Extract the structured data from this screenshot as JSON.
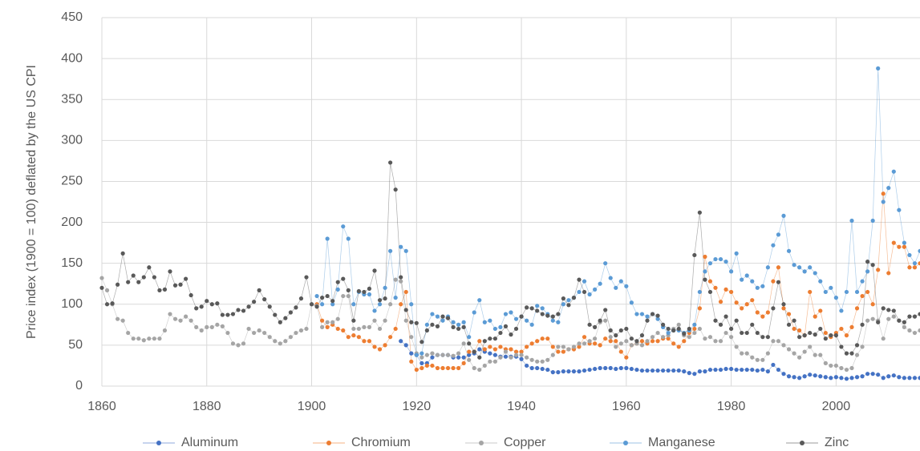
{
  "chart_data": {
    "type": "scatter_line",
    "y_label": "Price index (1900 = 100) deflated by the US CPI",
    "x": [
      1860,
      1861,
      1862,
      1863,
      1864,
      1865,
      1866,
      1867,
      1868,
      1869,
      1870,
      1871,
      1872,
      1873,
      1874,
      1875,
      1876,
      1877,
      1878,
      1879,
      1880,
      1881,
      1882,
      1883,
      1884,
      1885,
      1886,
      1887,
      1888,
      1889,
      1890,
      1891,
      1892,
      1893,
      1894,
      1895,
      1896,
      1897,
      1898,
      1899,
      1900,
      1901,
      1902,
      1903,
      1904,
      1905,
      1906,
      1907,
      1908,
      1909,
      1910,
      1911,
      1912,
      1913,
      1914,
      1915,
      1916,
      1917,
      1918,
      1919,
      1920,
      1921,
      1922,
      1923,
      1924,
      1925,
      1926,
      1927,
      1928,
      1929,
      1930,
      1931,
      1932,
      1933,
      1934,
      1935,
      1936,
      1937,
      1938,
      1939,
      1940,
      1941,
      1942,
      1943,
      1944,
      1945,
      1946,
      1947,
      1948,
      1949,
      1950,
      1951,
      1952,
      1953,
      1954,
      1955,
      1956,
      1957,
      1958,
      1959,
      1960,
      1961,
      1962,
      1963,
      1964,
      1965,
      1966,
      1967,
      1968,
      1969,
      1970,
      1971,
      1972,
      1973,
      1974,
      1975,
      1976,
      1977,
      1978,
      1979,
      1980,
      1981,
      1982,
      1983,
      1984,
      1985,
      1986,
      1987,
      1988,
      1989,
      1990,
      1991,
      1992,
      1993,
      1994,
      1995,
      1996,
      1997,
      1998,
      1999,
      2000,
      2001,
      2002,
      2003,
      2004,
      2005,
      2006,
      2007,
      2008,
      2009,
      2010,
      2011,
      2012,
      2013,
      2014,
      2015,
      2016
    ],
    "series": [
      {
        "name": "Aluminum",
        "color": "#4472c4",
        "values": [
          null,
          null,
          null,
          null,
          null,
          null,
          null,
          null,
          null,
          null,
          null,
          null,
          null,
          null,
          null,
          null,
          null,
          null,
          null,
          null,
          null,
          null,
          null,
          null,
          null,
          null,
          null,
          null,
          null,
          null,
          null,
          null,
          null,
          null,
          null,
          null,
          null,
          null,
          null,
          null,
          null,
          null,
          null,
          null,
          null,
          null,
          null,
          null,
          null,
          null,
          null,
          null,
          null,
          null,
          null,
          null,
          null,
          55,
          50,
          40,
          38,
          28,
          28,
          35,
          38,
          38,
          38,
          35,
          35,
          35,
          38,
          40,
          45,
          42,
          40,
          38,
          36,
          36,
          36,
          36,
          33,
          25,
          22,
          22,
          21,
          20,
          17,
          17,
          18,
          18,
          18,
          18,
          19,
          20,
          21,
          22,
          22,
          22,
          21,
          22,
          22,
          21,
          20,
          19,
          19,
          19,
          19,
          19,
          19,
          19,
          19,
          18,
          16,
          15,
          18,
          18,
          20,
          20,
          20,
          21,
          21,
          20,
          20,
          20,
          20,
          19,
          20,
          18,
          26,
          20,
          15,
          12,
          11,
          10,
          12,
          14,
          13,
          12,
          11,
          10,
          11,
          10,
          9,
          10,
          11,
          12,
          15,
          15,
          14,
          10,
          12,
          13,
          11,
          10,
          10,
          10,
          10
        ]
      },
      {
        "name": "Chromium",
        "color": "#ed7d31",
        "values": [
          null,
          null,
          null,
          null,
          null,
          null,
          null,
          null,
          null,
          null,
          null,
          null,
          null,
          null,
          null,
          null,
          null,
          null,
          null,
          null,
          null,
          null,
          null,
          null,
          null,
          null,
          null,
          null,
          null,
          null,
          null,
          null,
          null,
          null,
          null,
          null,
          null,
          null,
          null,
          null,
          null,
          100,
          80,
          72,
          75,
          70,
          68,
          60,
          62,
          60,
          55,
          55,
          48,
          45,
          50,
          60,
          70,
          100,
          115,
          30,
          20,
          22,
          25,
          25,
          22,
          22,
          22,
          22,
          22,
          28,
          42,
          42,
          55,
          45,
          48,
          45,
          48,
          45,
          45,
          42,
          42,
          48,
          52,
          55,
          58,
          58,
          48,
          42,
          42,
          45,
          45,
          48,
          60,
          52,
          52,
          50,
          58,
          55,
          55,
          42,
          35,
          50,
          52,
          55,
          52,
          55,
          55,
          58,
          58,
          52,
          48,
          55,
          65,
          70,
          95,
          158,
          128,
          120,
          103,
          118,
          115,
          102,
          95,
          100,
          105,
          90,
          85,
          90,
          128,
          145,
          95,
          88,
          70,
          68,
          62,
          115,
          85,
          92,
          65,
          60,
          65,
          70,
          62,
          72,
          95,
          110,
          115,
          100,
          142,
          235,
          138,
          175,
          170,
          170,
          145,
          145,
          150
        ]
      },
      {
        "name": "Copper",
        "color": "#a5a5a5",
        "values": [
          132,
          117,
          100,
          82,
          80,
          65,
          58,
          58,
          56,
          58,
          58,
          58,
          68,
          88,
          82,
          80,
          85,
          80,
          72,
          68,
          72,
          72,
          75,
          73,
          65,
          52,
          50,
          52,
          70,
          65,
          68,
          65,
          60,
          55,
          52,
          55,
          60,
          65,
          68,
          70,
          100,
          98,
          72,
          78,
          78,
          82,
          110,
          110,
          70,
          70,
          72,
          72,
          80,
          70,
          80,
          100,
          130,
          128,
          80,
          60,
          40,
          35,
          38,
          40,
          38,
          38,
          38,
          37,
          40,
          52,
          32,
          22,
          20,
          25,
          30,
          30,
          35,
          42,
          35,
          38,
          38,
          35,
          32,
          30,
          30,
          32,
          38,
          48,
          48,
          45,
          48,
          52,
          52,
          55,
          58,
          78,
          80,
          60,
          48,
          52,
          55,
          50,
          52,
          50,
          55,
          60,
          65,
          60,
          62,
          70,
          75,
          62,
          60,
          65,
          70,
          58,
          60,
          55,
          55,
          65,
          60,
          48,
          40,
          40,
          35,
          32,
          32,
          40,
          55,
          55,
          50,
          45,
          40,
          35,
          42,
          48,
          38,
          38,
          28,
          25,
          25,
          22,
          20,
          22,
          38,
          48,
          80,
          82,
          80,
          58,
          82,
          85,
          80,
          72,
          68,
          65,
          68
        ]
      },
      {
        "name": "Manganese",
        "color": "#5b9bd5",
        "values": [
          null,
          null,
          null,
          null,
          null,
          null,
          null,
          null,
          null,
          null,
          null,
          null,
          null,
          null,
          null,
          null,
          null,
          null,
          null,
          null,
          null,
          null,
          null,
          null,
          null,
          null,
          null,
          null,
          null,
          null,
          null,
          null,
          null,
          null,
          null,
          null,
          null,
          null,
          null,
          null,
          null,
          110,
          100,
          180,
          100,
          118,
          195,
          180,
          100,
          115,
          112,
          112,
          92,
          100,
          120,
          165,
          108,
          170,
          165,
          100,
          38,
          40,
          75,
          88,
          85,
          80,
          85,
          78,
          75,
          78,
          60,
          90,
          105,
          78,
          80,
          70,
          72,
          88,
          90,
          82,
          85,
          80,
          75,
          98,
          95,
          88,
          80,
          78,
          100,
          105,
          108,
          115,
          128,
          112,
          118,
          125,
          150,
          132,
          120,
          128,
          122,
          102,
          88,
          88,
          85,
          88,
          82,
          72,
          65,
          68,
          68,
          65,
          68,
          75,
          115,
          140,
          150,
          155,
          155,
          152,
          140,
          162,
          130,
          135,
          128,
          120,
          122,
          145,
          172,
          185,
          208,
          165,
          148,
          145,
          140,
          145,
          138,
          128,
          115,
          120,
          108,
          92,
          115,
          202,
          115,
          128,
          140,
          202,
          388,
          225,
          242,
          262,
          215,
          175,
          160,
          150,
          165
        ]
      },
      {
        "name": "Zinc",
        "color": "#595959",
        "values": [
          120,
          100,
          101,
          124,
          162,
          127,
          135,
          127,
          133,
          145,
          133,
          117,
          118,
          140,
          123,
          124,
          131,
          111,
          95,
          97,
          104,
          100,
          101,
          87,
          87,
          88,
          93,
          92,
          97,
          103,
          117,
          106,
          97,
          87,
          78,
          83,
          90,
          96,
          107,
          133,
          100,
          97,
          108,
          110,
          104,
          127,
          131,
          117,
          80,
          116,
          115,
          119,
          141,
          105,
          107,
          273,
          240,
          133,
          93,
          78,
          77,
          54,
          68,
          75,
          73,
          85,
          83,
          72,
          70,
          72,
          52,
          42,
          35,
          55,
          58,
          58,
          65,
          73,
          63,
          70,
          85,
          96,
          95,
          92,
          88,
          86,
          85,
          88,
          107,
          99,
          108,
          130,
          115,
          75,
          72,
          80,
          93,
          68,
          62,
          68,
          70,
          58,
          55,
          62,
          80,
          88,
          86,
          75,
          70,
          68,
          70,
          64,
          70,
          160,
          212,
          130,
          115,
          80,
          75,
          85,
          70,
          80,
          65,
          65,
          75,
          65,
          60,
          60,
          95,
          127,
          100,
          75,
          80,
          60,
          62,
          65,
          63,
          70,
          58,
          62,
          62,
          48,
          40,
          40,
          50,
          75,
          152,
          148,
          78,
          95,
          93,
          92,
          80,
          78,
          85,
          85,
          88
        ]
      }
    ],
    "xlim": [
      1860,
      2016
    ],
    "xticks": [
      1860,
      1880,
      1900,
      1920,
      1940,
      1960,
      1980,
      2000
    ],
    "ylim": [
      0,
      450
    ],
    "yticks": [
      0,
      50,
      100,
      150,
      200,
      250,
      300,
      350,
      400,
      450
    ],
    "grid": true,
    "legend": "bottom"
  }
}
